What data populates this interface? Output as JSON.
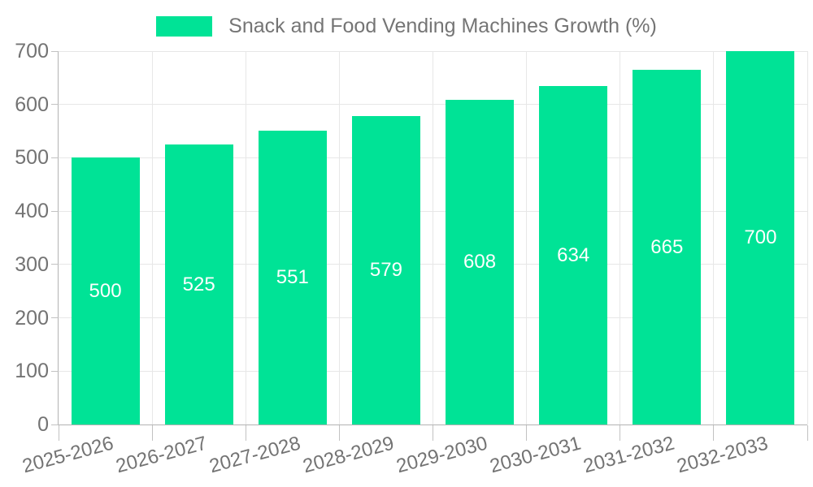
{
  "chart_data": {
    "type": "bar",
    "title": "",
    "legend": "Snack and Food Vending Machines Growth (%)",
    "legend_position": "top",
    "categories": [
      "2025-2026",
      "2026-2027",
      "2027-2028",
      "2028-2029",
      "2029-2030",
      "2030-2031",
      "2031-2032",
      "2032-2033"
    ],
    "values": [
      500,
      525,
      551,
      579,
      608,
      634,
      665,
      700
    ],
    "series_name": "Snack and Food Vending Machines Growth (%)",
    "xlabel": "",
    "ylabel": "",
    "ylim": [
      0,
      700
    ],
    "yticks": [
      0,
      100,
      200,
      300,
      400,
      500,
      600,
      700
    ],
    "grid": true,
    "bar_label_position": "middle",
    "x_label_rotation": -15,
    "colors": {
      "bar": "#00E396",
      "bar_label": "#FFFFFF",
      "axis_text": "#737373",
      "legend_text": "#757575",
      "gridline": "#E7E7E7",
      "axis_line": "#B3B3B3",
      "background": "#FFFFFF"
    }
  }
}
